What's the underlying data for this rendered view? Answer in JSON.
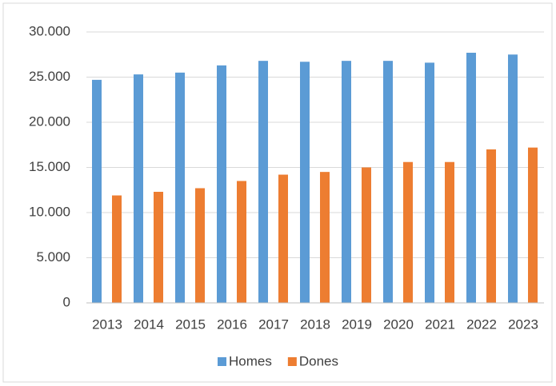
{
  "chart_data": {
    "type": "bar",
    "categories": [
      "2013",
      "2014",
      "2015",
      "2016",
      "2017",
      "2018",
      "2019",
      "2020",
      "2021",
      "2022",
      "2023"
    ],
    "series": [
      {
        "name": "Homes",
        "color": "#5b9bd5",
        "values": [
          24700,
          25300,
          25500,
          26300,
          26800,
          26700,
          26800,
          26800,
          26600,
          27700,
          27500
        ]
      },
      {
        "name": "Dones",
        "color": "#ed7d31",
        "values": [
          11900,
          12300,
          12700,
          13500,
          14200,
          14500,
          15000,
          15600,
          15600,
          17000,
          17200
        ]
      }
    ],
    "ylim": [
      0,
      30000
    ],
    "yticks": [
      0,
      {
        "value": 5000,
        "label": "5.000"
      },
      {
        "value": 10000,
        "label": "10.000"
      },
      {
        "value": 15000,
        "label": "15.000"
      },
      {
        "value": 20000,
        "label": "20.000"
      },
      {
        "value": 25000,
        "label": "25.000"
      },
      {
        "value": 30000,
        "label": "30.000"
      }
    ],
    "grid": true,
    "legend": "bottom"
  }
}
